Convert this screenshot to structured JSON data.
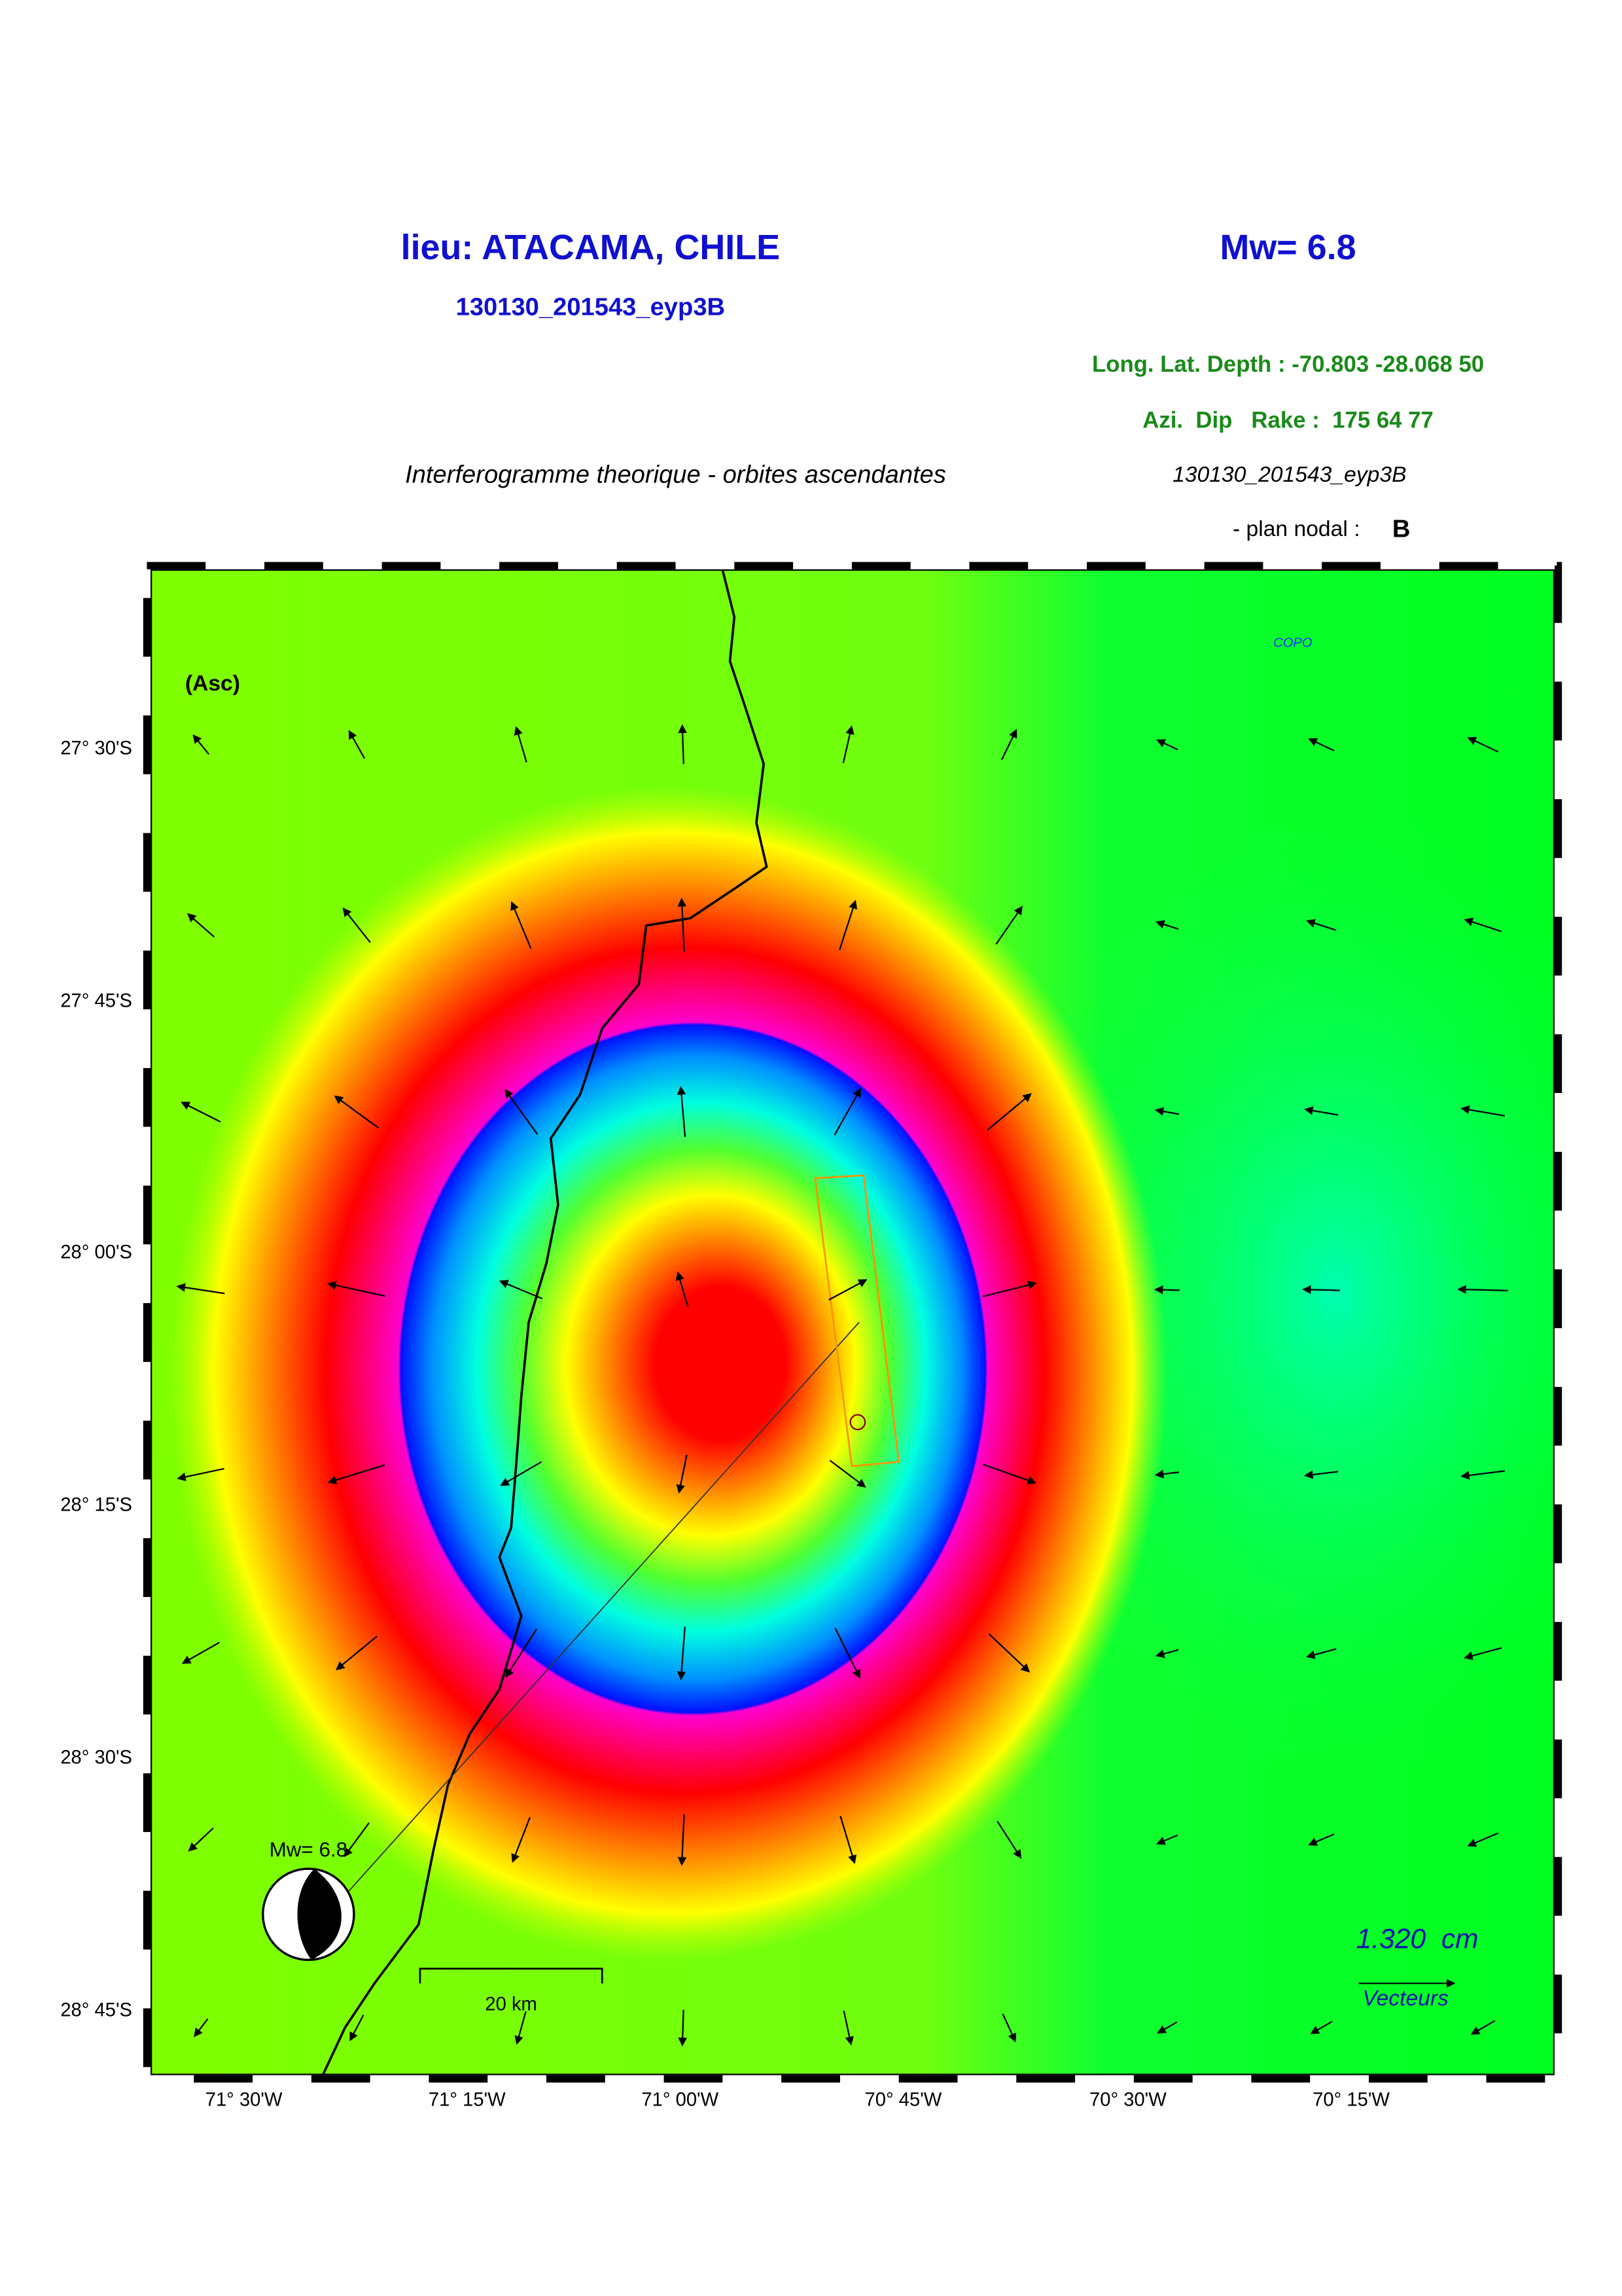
{
  "header": {
    "title": "lieu: ATACAMA, CHILE",
    "magnitude": "Mw= 6.8",
    "event_id": "130130_201543_eyp3B",
    "location": "Long. Lat. Depth : -70.803 -28.068 50",
    "mechanism": "Azi.  Dip   Rake :  175 64 77",
    "subtitle": "Interferogramme theorique - orbites ascendantes",
    "event_id_2": "130130_201543_eyp3B",
    "plan_label": "- plan nodal :",
    "plan_value": "B"
  },
  "map": {
    "mode": "(Asc)",
    "station": "COPO",
    "lat_labels": [
      "27° 30'S",
      "27° 45'S",
      "28° 00'S",
      "28° 15'S",
      "28° 30'S",
      "28° 45'S"
    ],
    "lon_labels": [
      "71° 30'W",
      "71° 15'W",
      "71° 00'W",
      "70° 45'W",
      "70° 30'W",
      "70° 15'W"
    ],
    "beachball_label": "Mw= 6.8",
    "scale_label": "20 km",
    "vector_scale": "1.320  cm",
    "vector_label": "Vecteurs"
  }
}
